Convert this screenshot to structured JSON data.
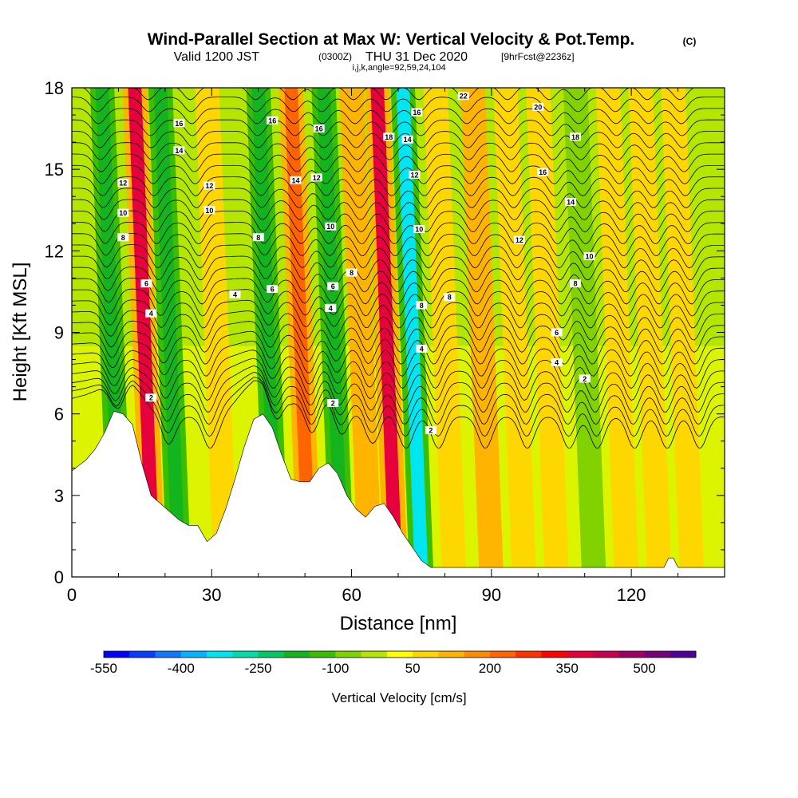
{
  "title": {
    "main": "Wind-Parallel Section at Max W: Vertical Velocity & Pot.Temp.",
    "copyright": "(C)",
    "valid_prefix": "Valid 1200 JST",
    "valid_utc": "(0300Z)",
    "valid_date": "THU 31 Dec 2020",
    "forecast": "[9hrFcst@2236z]",
    "indices": "i,j,k,angle=92,59,24,104"
  },
  "chart_data": {
    "type": "heatmap",
    "xlabel": "Distance [nm]",
    "ylabel": "Height [Kft MSL]",
    "xlim": [
      0,
      140
    ],
    "ylim": [
      0,
      18
    ],
    "x_ticks": [
      "0",
      "30",
      "60",
      "90",
      "120"
    ],
    "x_tick_values": [
      0,
      30,
      60,
      90,
      120
    ],
    "y_ticks": [
      "0",
      "3",
      "6",
      "9",
      "12",
      "15",
      "18"
    ],
    "y_tick_values": [
      0,
      3,
      6,
      9,
      12,
      15,
      18
    ],
    "colorbar": {
      "title": "Vertical Velocity [cm/s]",
      "labels": [
        "-550",
        "-400",
        "-250",
        "-100",
        "50",
        "200",
        "350",
        "500"
      ],
      "colors": [
        "#0000ff",
        "#0a3cff",
        "#0f78ff",
        "#00b4ff",
        "#00e6f0",
        "#00dcaa",
        "#00c864",
        "#14b41e",
        "#3cbe00",
        "#82d200",
        "#b4e600",
        "#ffff00",
        "#ffd700",
        "#ffb400",
        "#ff8c00",
        "#ff6400",
        "#ff3200",
        "#ff0000",
        "#e6003c",
        "#c80050",
        "#a00064",
        "#780078",
        "#500096"
      ]
    },
    "terrain": [
      [
        0,
        3.9
      ],
      [
        3,
        4.3
      ],
      [
        5,
        4.7
      ],
      [
        7,
        5.3
      ],
      [
        9,
        6.1
      ],
      [
        11,
        6.0
      ],
      [
        13,
        5.6
      ],
      [
        15,
        4.2
      ],
      [
        17,
        3.0
      ],
      [
        19,
        2.7
      ],
      [
        21,
        2.4
      ],
      [
        23,
        2.1
      ],
      [
        25,
        1.9
      ],
      [
        27,
        1.9
      ],
      [
        29,
        1.3
      ],
      [
        31,
        1.6
      ],
      [
        33,
        2.5
      ],
      [
        35,
        3.6
      ],
      [
        37,
        4.8
      ],
      [
        39,
        5.8
      ],
      [
        41,
        6.0
      ],
      [
        43,
        5.5
      ],
      [
        45,
        4.5
      ],
      [
        47,
        3.6
      ],
      [
        49,
        3.5
      ],
      [
        51,
        3.5
      ],
      [
        53,
        4.0
      ],
      [
        55,
        4.2
      ],
      [
        57,
        3.8
      ],
      [
        59,
        3.0
      ],
      [
        61,
        2.5
      ],
      [
        63,
        2.2
      ],
      [
        65,
        2.6
      ],
      [
        67,
        2.7
      ],
      [
        69,
        2.2
      ],
      [
        71,
        1.6
      ],
      [
        73,
        1.1
      ],
      [
        75,
        0.6
      ],
      [
        77,
        0.35
      ],
      [
        80,
        0.35
      ],
      [
        90,
        0.35
      ],
      [
        100,
        0.35
      ],
      [
        110,
        0.35
      ],
      [
        127,
        0.35
      ],
      [
        128,
        0.7
      ],
      [
        129,
        0.7
      ],
      [
        130,
        0.35
      ],
      [
        140,
        0.35
      ]
    ],
    "vertical_velocity_bands": [
      {
        "x": 10.5,
        "w": -180
      },
      {
        "x": 17.5,
        "w": 350
      },
      {
        "x": 23,
        "w": -200
      },
      {
        "x": 33,
        "w": 90
      },
      {
        "x": 44,
        "w": -170
      },
      {
        "x": 51,
        "w": 220
      },
      {
        "x": 58,
        "w": -170
      },
      {
        "x": 64,
        "w": 120
      },
      {
        "x": 69.5,
        "w": 380
      },
      {
        "x": 75,
        "w": -320
      },
      {
        "x": 82,
        "w": 60
      },
      {
        "x": 90,
        "w": 100
      },
      {
        "x": 97,
        "w": 60
      },
      {
        "x": 104,
        "w": 90
      },
      {
        "x": 112,
        "w": -60
      },
      {
        "x": 119,
        "w": 80
      },
      {
        "x": 126,
        "w": 60
      },
      {
        "x": 133,
        "w": 90
      }
    ],
    "contour_labels": [
      {
        "text": "22",
        "x": 84,
        "y": 17.7
      },
      {
        "text": "20",
        "x": 100,
        "y": 17.3
      },
      {
        "text": "18",
        "x": 108,
        "y": 16.2
      },
      {
        "text": "16",
        "x": 101,
        "y": 14.9
      },
      {
        "text": "14",
        "x": 107,
        "y": 13.8
      },
      {
        "text": "12",
        "x": 96,
        "y": 12.4
      },
      {
        "text": "10",
        "x": 111,
        "y": 11.8
      },
      {
        "text": "8",
        "x": 108,
        "y": 10.8
      },
      {
        "text": "6",
        "x": 104,
        "y": 9.0
      },
      {
        "text": "4",
        "x": 104,
        "y": 7.9
      },
      {
        "text": "2",
        "x": 110,
        "y": 7.3
      },
      {
        "text": "16",
        "x": 23,
        "y": 16.7
      },
      {
        "text": "14",
        "x": 23,
        "y": 15.7
      },
      {
        "text": "12",
        "x": 11,
        "y": 14.5
      },
      {
        "text": "10",
        "x": 11,
        "y": 13.4
      },
      {
        "text": "8",
        "x": 11,
        "y": 12.5
      },
      {
        "text": "6",
        "x": 16,
        "y": 10.8
      },
      {
        "text": "4",
        "x": 17,
        "y": 9.7
      },
      {
        "text": "2",
        "x": 17,
        "y": 6.6
      },
      {
        "text": "12",
        "x": 29.5,
        "y": 14.4
      },
      {
        "text": "10",
        "x": 29.5,
        "y": 13.5
      },
      {
        "text": "4",
        "x": 35,
        "y": 10.4
      },
      {
        "text": "8",
        "x": 40,
        "y": 12.5
      },
      {
        "text": "6",
        "x": 43,
        "y": 10.6
      },
      {
        "text": "16",
        "x": 43,
        "y": 16.8
      },
      {
        "text": "14",
        "x": 48,
        "y": 14.6
      },
      {
        "text": "12",
        "x": 52.5,
        "y": 14.7
      },
      {
        "text": "16",
        "x": 53,
        "y": 16.5
      },
      {
        "text": "10",
        "x": 55.5,
        "y": 12.9
      },
      {
        "text": "8",
        "x": 60,
        "y": 11.2
      },
      {
        "text": "6",
        "x": 56,
        "y": 10.7
      },
      {
        "text": "4",
        "x": 55.5,
        "y": 9.9
      },
      {
        "text": "2",
        "x": 56,
        "y": 6.4
      },
      {
        "text": "18",
        "x": 68,
        "y": 16.2
      },
      {
        "text": "14",
        "x": 72,
        "y": 16.1
      },
      {
        "text": "16",
        "x": 74,
        "y": 17.1
      },
      {
        "text": "12",
        "x": 73.5,
        "y": 14.8
      },
      {
        "text": "10",
        "x": 74.5,
        "y": 12.8
      },
      {
        "text": "8",
        "x": 75,
        "y": 10.0
      },
      {
        "text": "4",
        "x": 75,
        "y": 8.4
      },
      {
        "text": "8",
        "x": 81,
        "y": 10.3
      },
      {
        "text": "2",
        "x": 77,
        "y": 5.4
      }
    ]
  }
}
